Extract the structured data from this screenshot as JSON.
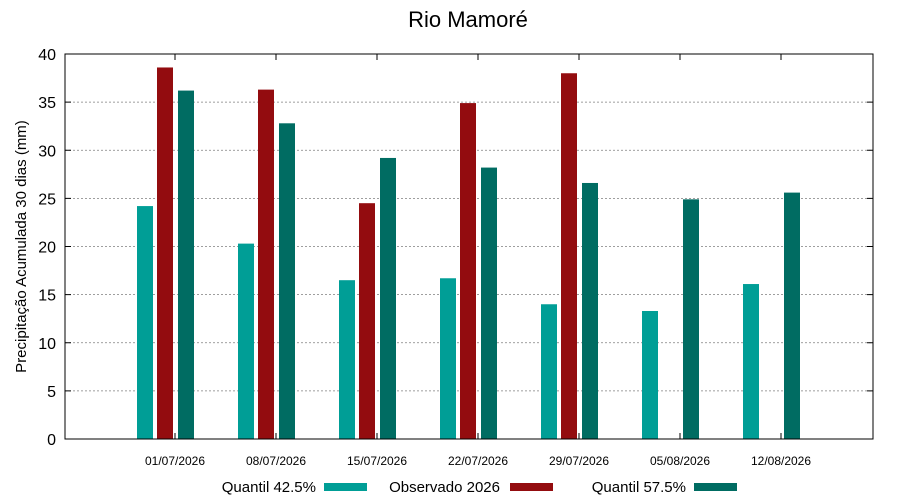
{
  "chart_data": {
    "type": "bar",
    "title": "Rio Mamoré",
    "xlabel": "",
    "ylabel": "Precipitação Acumulada 30 dias (mm)",
    "ylim": [
      0,
      40
    ],
    "yticks": [
      0,
      5,
      10,
      15,
      20,
      25,
      30,
      35,
      40
    ],
    "grid": true,
    "legend_position": "bottom",
    "categories": [
      "01/07/2026",
      "08/07/2026",
      "15/07/2026",
      "22/07/2026",
      "29/07/2026",
      "05/08/2026",
      "12/08/2026"
    ],
    "series": [
      {
        "name": "Quantil 42.5%",
        "color": "#009e96",
        "values": [
          24.2,
          20.3,
          16.5,
          16.7,
          14.0,
          13.3,
          16.1
        ]
      },
      {
        "name": "Observado 2026",
        "color": "#930c0f",
        "values": [
          38.6,
          36.3,
          24.5,
          34.9,
          38.0,
          null,
          null
        ]
      },
      {
        "name": "Quantil 57.5%",
        "color": "#006c62",
        "values": [
          36.2,
          32.8,
          29.2,
          28.2,
          26.6,
          24.9,
          25.6
        ]
      }
    ]
  }
}
